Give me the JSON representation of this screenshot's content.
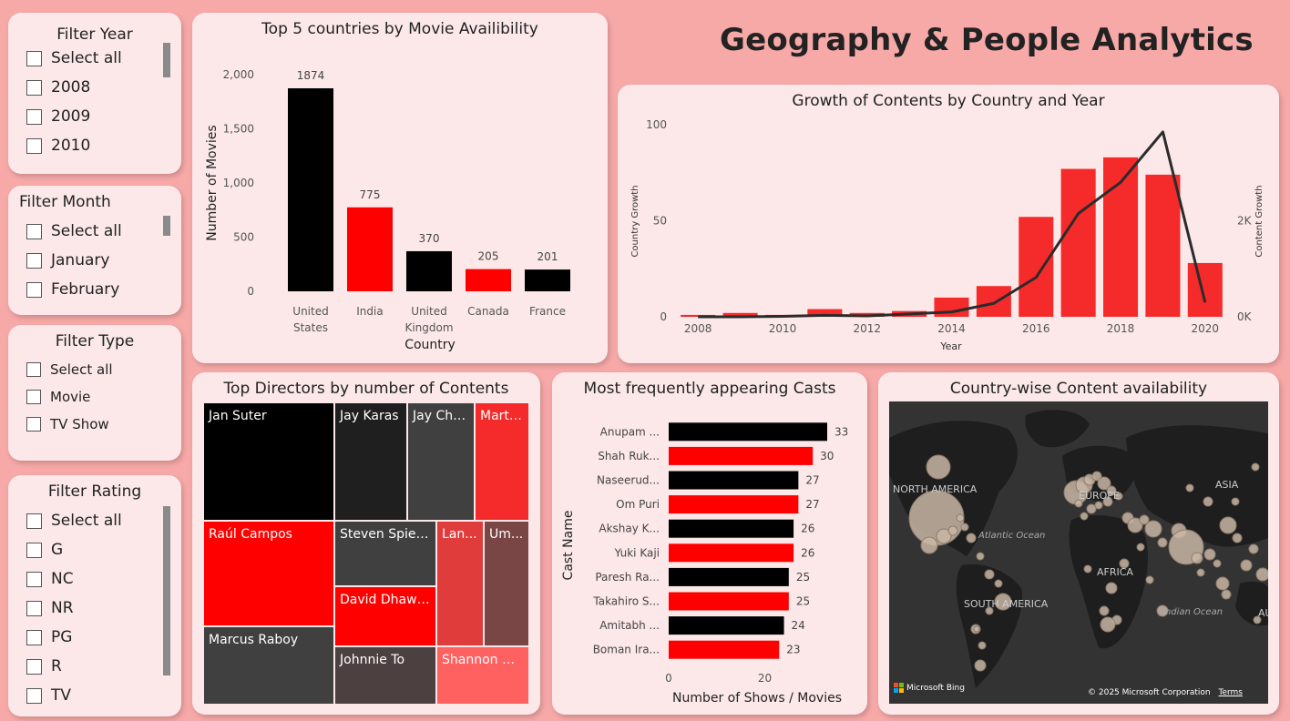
{
  "page_title": "Geography & People Analytics",
  "filters": {
    "year": {
      "title": "Filter Year",
      "options": [
        "Select all",
        "2008",
        "2009",
        "2010"
      ]
    },
    "month": {
      "title": "Filter Month",
      "options": [
        "Select all",
        "January",
        "February"
      ]
    },
    "type": {
      "title": "Filter Type",
      "options": [
        "Select all",
        "Movie",
        "TV Show"
      ]
    },
    "rating": {
      "title": "Filter Rating",
      "options": [
        "Select all",
        "G",
        "NC",
        "NR",
        "PG",
        "R",
        "TV"
      ]
    }
  },
  "colors": {
    "black": "#000000",
    "red": "#ff0000",
    "bright_red": "#f52a2a",
    "background": "#f7a9a8",
    "card": "#fce8e8"
  },
  "chart_data": [
    {
      "type": "bar",
      "title": "Top 5 countries by Movie Availibility",
      "xlabel": "Country",
      "ylabel": "Number of Movies",
      "categories": [
        "United States",
        "India",
        "United Kingdom",
        "Canada",
        "France"
      ],
      "category_lines": [
        [
          "United",
          "States"
        ],
        [
          "India"
        ],
        [
          "United",
          "Kingdom"
        ],
        [
          "Canada"
        ],
        [
          "France"
        ]
      ],
      "values": [
        1874,
        775,
        370,
        205,
        201
      ],
      "bar_colors": [
        "#000000",
        "#ff0000",
        "#000000",
        "#ff0000",
        "#000000"
      ],
      "ylim": [
        0,
        2000
      ],
      "yticks": [
        "0",
        "500",
        "1,000",
        "1,500",
        "2,000"
      ],
      "ytick_values": [
        0,
        500,
        1000,
        1500,
        2000
      ]
    },
    {
      "type": "bar",
      "title": "Growth of Contents by Country and Year",
      "xlabel": "Year",
      "ylabel": "Country Growth",
      "y2label": "Content Growth",
      "x": [
        2008,
        2009,
        2010,
        2011,
        2012,
        2013,
        2014,
        2015,
        2016,
        2017,
        2018,
        2019,
        2020
      ],
      "xticks": [
        "2008",
        "2010",
        "2012",
        "2014",
        "2016",
        "2018",
        "2020"
      ],
      "bar_values": [
        1,
        2,
        1,
        4,
        2,
        3,
        10,
        16,
        52,
        77,
        83,
        74,
        28
      ],
      "ylim": [
        0,
        100
      ],
      "yticks": [
        "0",
        "50",
        "100"
      ],
      "ytick_values": [
        0,
        50,
        100
      ],
      "line_values": [
        0,
        0,
        10,
        30,
        20,
        60,
        100,
        280,
        820,
        2150,
        2800,
        3850,
        300
      ],
      "y2lim": [
        0,
        4000
      ],
      "y2ticks": [
        "0K",
        "2K"
      ],
      "y2tick_values": [
        0,
        2000
      ]
    },
    {
      "type": "bar",
      "orientation": "horizontal",
      "title": "Most frequently appearing Casts",
      "xlabel": "Number of Shows / Movies",
      "ylabel": "Cast Name",
      "categories": [
        "Anupam ...",
        "Shah Ruk...",
        "Naseerud...",
        "Om Puri",
        "Akshay K...",
        "Yuki Kaji",
        "Paresh Ra...",
        "Takahiro S...",
        "Amitabh ...",
        "Boman Ira..."
      ],
      "values": [
        33,
        30,
        27,
        27,
        26,
        26,
        25,
        25,
        24,
        23
      ],
      "bar_colors": [
        "#000000",
        "#ff0000",
        "#000000",
        "#ff0000",
        "#000000",
        "#ff0000",
        "#000000",
        "#ff0000",
        "#000000",
        "#ff0000"
      ],
      "xlim": [
        0,
        33
      ],
      "xticks": [
        "0",
        "20"
      ],
      "xtick_values": [
        0,
        20
      ]
    }
  ],
  "treemap": {
    "title": "Top Directors by number of Contents",
    "items": [
      {
        "label": "Jan Suter",
        "color": "#000000"
      },
      {
        "label": "Jay Karas",
        "color": "#1f1f1f"
      },
      {
        "label": "Jay Cha...",
        "color": "#404040"
      },
      {
        "label": "Marti...",
        "color": "#f52a2a"
      },
      {
        "label": "Raúl Campos",
        "color": "#ff0000"
      },
      {
        "label": "Steven Spielb...",
        "color": "#404040"
      },
      {
        "label": "Lan...",
        "color": "#e03c3c"
      },
      {
        "label": "Um...",
        "color": "#7a4545"
      },
      {
        "label": "David Dhawan",
        "color": "#ff0000"
      },
      {
        "label": "Marcus Raboy",
        "color": "#404040"
      },
      {
        "label": "Johnnie To",
        "color": "#4d4040"
      },
      {
        "label": "Shannon Ha...",
        "color": "#ff6060"
      }
    ]
  },
  "map": {
    "title": "Country-wise Content availability",
    "labels": {
      "north_america": "NORTH AMERICA",
      "europe": "EUROPE",
      "asia": "ASIA",
      "africa": "AFRICA",
      "south_america": "SOUTH AMERICA",
      "atlantic": "Atlantic Ocean",
      "indian": "Indian Ocean",
      "australia": "AU"
    },
    "brand": "Microsoft Bing",
    "copyright": "© 2025 Microsoft Corporation",
    "terms": "Terms"
  }
}
